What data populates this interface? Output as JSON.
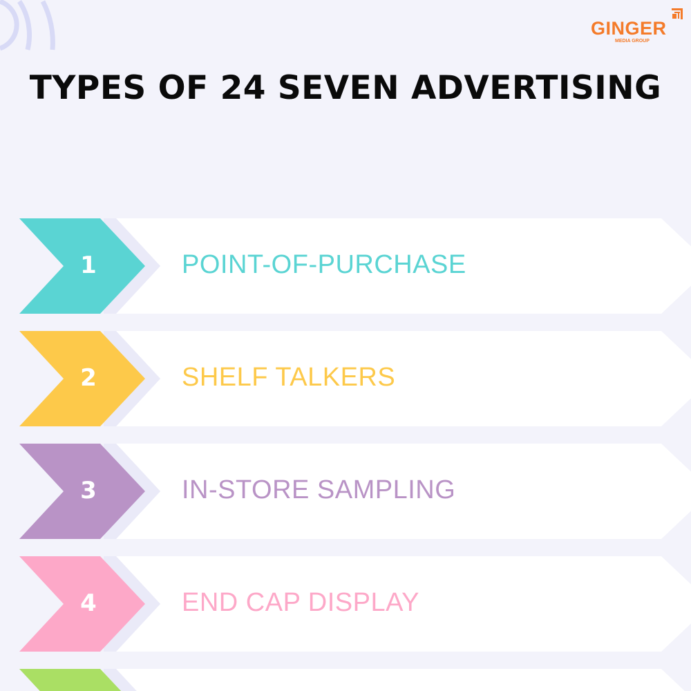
{
  "brand": {
    "name": "GINGER",
    "subtitle": "MEDIA GROUP",
    "color": "#f47b2a"
  },
  "title": "TYPES OF 24 SEVEN ADVERTISING",
  "items": [
    {
      "number": "1",
      "label": "POINT-OF-PURCHASE",
      "color": "#5ad4d3"
    },
    {
      "number": "2",
      "label": "SHELF TALKERS",
      "color": "#fdc94a"
    },
    {
      "number": "3",
      "label": "IN-STORE SAMPLING",
      "color": "#b993c6"
    },
    {
      "number": "4",
      "label": "END CAP DISPLAY",
      "color": "#fda8c8"
    },
    {
      "number": "",
      "label": "",
      "color": "#aadf64"
    }
  ],
  "colors": {
    "background": "#f3f3fb",
    "decor": "#d8daf6",
    "row": "#ffffff",
    "shadow": "#eaeaf8"
  }
}
